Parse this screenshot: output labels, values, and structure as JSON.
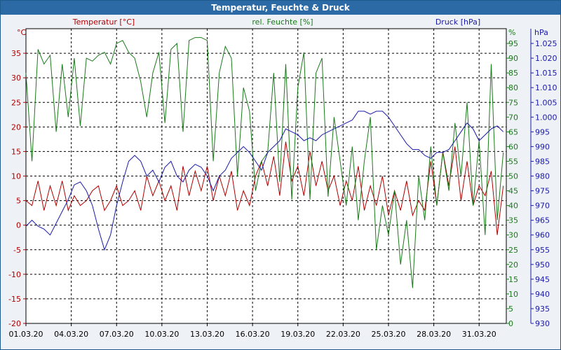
{
  "title": "Temperatur, Feuchte & Druck",
  "chart_data": {
    "type": "line",
    "title": "Temperatur, Feuchte & Druck",
    "colors": {
      "temperature": "#b00000",
      "humidity": "#1a7a1a",
      "pressure": "#1a1aa8"
    },
    "axes": {
      "temperature": {
        "unit": "°C",
        "label": "Temperatur [°C]",
        "range": [
          -20,
          40
        ],
        "ticks": [
          "-20",
          "-15",
          "-10",
          "-5",
          "0",
          "5",
          "10",
          "15",
          "20",
          "25",
          "30",
          "35"
        ]
      },
      "humidity": {
        "unit": "%",
        "label": "rel. Feuchte [%]",
        "range": [
          0,
          100
        ],
        "ticks": [
          "0",
          "5",
          "10",
          "15",
          "20",
          "25",
          "30",
          "35",
          "40",
          "45",
          "50",
          "55",
          "60",
          "65",
          "70",
          "75",
          "80",
          "85",
          "90",
          "95"
        ]
      },
      "pressure": {
        "unit": "hPa",
        "label": "Druck [hPa]",
        "range": [
          930,
          1030
        ],
        "ticks": [
          "930",
          "935",
          "940",
          "945",
          "950",
          "955",
          "960",
          "965",
          "970",
          "975",
          "980",
          "985",
          "990",
          "995",
          "1.000",
          "1.005",
          "1.010",
          "1.015",
          "1.020",
          "1.025"
        ]
      },
      "x": {
        "range": [
          0,
          31.8
        ],
        "ticks": [
          "01.03.20",
          "04.03.20",
          "07.03.20",
          "10.03.20",
          "13.03.20",
          "16.03.20",
          "19.03.20",
          "22.03.20",
          "25.03.20",
          "28.03.20",
          "31.03.20"
        ]
      }
    },
    "series": [
      {
        "name": "Temperatur [°C]",
        "axis": "temperature",
        "x": [
          0,
          0.4,
          0.8,
          1.2,
          1.6,
          2,
          2.4,
          2.8,
          3.2,
          3.6,
          4,
          4.4,
          4.8,
          5.2,
          5.6,
          6,
          6.4,
          6.8,
          7.2,
          7.6,
          8,
          8.4,
          8.8,
          9.2,
          9.6,
          10,
          10.4,
          10.8,
          11.2,
          11.6,
          12,
          12.4,
          12.8,
          13.2,
          13.6,
          14,
          14.4,
          14.8,
          15.2,
          15.6,
          16,
          16.4,
          16.8,
          17.2,
          17.6,
          18,
          18.4,
          18.8,
          19.2,
          19.6,
          20,
          20.4,
          20.8,
          21.2,
          21.6,
          22,
          22.4,
          22.8,
          23.2,
          23.6,
          24,
          24.4,
          24.8,
          25.2,
          25.6,
          26,
          26.4,
          26.8,
          27.2,
          27.6,
          28,
          28.4,
          28.8,
          29.2,
          29.6,
          30,
          30.4,
          30.8,
          31.2,
          31.6
        ],
        "values": [
          5,
          4,
          9,
          3,
          8,
          4,
          9,
          3,
          6,
          4,
          5,
          7,
          8,
          3,
          5,
          8,
          4,
          5,
          7,
          3,
          10,
          6,
          9,
          5,
          8,
          3,
          12,
          6,
          11,
          7,
          12,
          5,
          10,
          6,
          11,
          3,
          7,
          4,
          10,
          13,
          8,
          14,
          6,
          17,
          9,
          12,
          6,
          15,
          8,
          13,
          7,
          10,
          4,
          9,
          5,
          12,
          3,
          8,
          4,
          10,
          2,
          7,
          3,
          9,
          2,
          5,
          3,
          13,
          4,
          15,
          8,
          16,
          5,
          13,
          4,
          8,
          6,
          11,
          -2,
          8
        ],
        "y": [
          5,
          4,
          9,
          3,
          8,
          4,
          9,
          3,
          6,
          4,
          5,
          7,
          8,
          3,
          5,
          8,
          4,
          5,
          7,
          3,
          10,
          6,
          9,
          5,
          8,
          3,
          12,
          6,
          11,
          7,
          12,
          5,
          10,
          6,
          11,
          3,
          7,
          4,
          10,
          13,
          8,
          14,
          6,
          17,
          9,
          12,
          6,
          15,
          8,
          13,
          7,
          10,
          4,
          9,
          5,
          12,
          3,
          8,
          4,
          10,
          2,
          7,
          3,
          9,
          2,
          5,
          3,
          13,
          4,
          15,
          8,
          16,
          5,
          13,
          4,
          8,
          6,
          11,
          -2,
          8
        ]
      },
      {
        "name": "rel. Feuchte [%]",
        "axis": "humidity",
        "x": [
          0,
          0.4,
          0.8,
          1.2,
          1.6,
          2,
          2.4,
          2.8,
          3.2,
          3.6,
          4,
          4.4,
          4.8,
          5.2,
          5.6,
          6,
          6.4,
          6.8,
          7.2,
          7.6,
          8,
          8.4,
          8.8,
          9.2,
          9.6,
          10,
          10.4,
          10.8,
          11.2,
          11.6,
          12,
          12.4,
          12.8,
          13.2,
          13.6,
          14,
          14.4,
          14.8,
          15.2,
          15.6,
          16,
          16.4,
          16.8,
          17.2,
          17.6,
          18,
          18.4,
          18.8,
          19.2,
          19.6,
          20,
          20.4,
          20.8,
          21.2,
          21.6,
          22,
          22.4,
          22.8,
          23.2,
          23.6,
          24,
          24.4,
          24.8,
          25.2,
          25.6,
          26,
          26.4,
          26.8,
          27.2,
          27.6,
          28,
          28.4,
          28.8,
          29.2,
          29.6,
          30,
          30.4,
          30.8,
          31.2,
          31.6
        ],
        "values": [
          85,
          55,
          93,
          88,
          91,
          65,
          88,
          70,
          90,
          67,
          90,
          89,
          91,
          92,
          88,
          95,
          96,
          92,
          90,
          82,
          70,
          85,
          92,
          68,
          93,
          95,
          65,
          96,
          97,
          97,
          96,
          55,
          85,
          94,
          90,
          50,
          80,
          72,
          45,
          55,
          58,
          85,
          48,
          88,
          42,
          80,
          92,
          42,
          85,
          90,
          43,
          70,
          55,
          40,
          60,
          35,
          55,
          70,
          25,
          40,
          30,
          45,
          20,
          35,
          12,
          50,
          35,
          60,
          40,
          58,
          45,
          68,
          50,
          75,
          40,
          62,
          30,
          88,
          35,
          58
        ],
        "y": [
          85,
          55,
          93,
          88,
          91,
          65,
          88,
          70,
          90,
          67,
          90,
          89,
          91,
          92,
          88,
          95,
          96,
          92,
          90,
          82,
          70,
          85,
          92,
          68,
          93,
          95,
          65,
          96,
          97,
          97,
          96,
          55,
          85,
          94,
          90,
          50,
          80,
          72,
          45,
          55,
          58,
          85,
          48,
          88,
          42,
          80,
          92,
          42,
          85,
          90,
          43,
          70,
          55,
          40,
          60,
          35,
          55,
          70,
          25,
          40,
          30,
          45,
          20,
          35,
          12,
          50,
          35,
          60,
          40,
          58,
          45,
          68,
          50,
          75,
          40,
          62,
          30,
          88,
          35,
          58
        ]
      },
      {
        "name": "Druck [hPa]",
        "axis": "pressure",
        "x": [
          0,
          0.4,
          0.8,
          1.2,
          1.6,
          2,
          2.4,
          2.8,
          3.2,
          3.6,
          4,
          4.4,
          4.8,
          5.2,
          5.6,
          6,
          6.4,
          6.8,
          7.2,
          7.6,
          8,
          8.4,
          8.8,
          9.2,
          9.6,
          10,
          10.4,
          10.8,
          11.2,
          11.6,
          12,
          12.4,
          12.8,
          13.2,
          13.6,
          14,
          14.4,
          14.8,
          15.2,
          15.6,
          16,
          16.4,
          16.8,
          17.2,
          17.6,
          18,
          18.4,
          18.8,
          19.2,
          19.6,
          20,
          20.4,
          20.8,
          21.2,
          21.6,
          22,
          22.4,
          22.8,
          23.2,
          23.6,
          24,
          24.4,
          24.8,
          25.2,
          25.6,
          26,
          26.4,
          26.8,
          27.2,
          27.6,
          28,
          28.4,
          28.8,
          29.2,
          29.6,
          30,
          30.4,
          30.8,
          31.2,
          31.6
        ],
        "values": [
          963,
          965,
          963,
          962,
          960,
          964,
          968,
          972,
          977,
          978,
          975,
          970,
          962,
          955,
          960,
          970,
          978,
          985,
          987,
          985,
          980,
          982,
          978,
          983,
          985,
          980,
          978,
          982,
          984,
          983,
          980,
          975,
          980,
          982,
          986,
          988,
          990,
          988,
          985,
          982,
          988,
          990,
          992,
          996,
          995,
          994,
          992,
          993,
          992,
          994,
          995,
          996,
          997,
          998,
          999,
          1002,
          1002,
          1001,
          1002,
          1002,
          1000,
          997,
          994,
          991,
          989,
          989,
          987,
          986,
          988,
          988,
          989,
          992,
          995,
          998,
          996,
          992,
          994,
          996,
          997,
          995
        ],
        "y": [
          963,
          965,
          963,
          962,
          960,
          964,
          968,
          972,
          977,
          978,
          975,
          970,
          962,
          955,
          960,
          970,
          978,
          985,
          987,
          985,
          980,
          982,
          978,
          983,
          985,
          980,
          978,
          982,
          984,
          983,
          980,
          975,
          980,
          982,
          986,
          988,
          990,
          988,
          985,
          982,
          988,
          990,
          992,
          996,
          995,
          994,
          992,
          993,
          992,
          994,
          995,
          996,
          997,
          998,
          999,
          1002,
          1002,
          1001,
          1002,
          1002,
          1000,
          997,
          994,
          991,
          989,
          989,
          987,
          986,
          988,
          988,
          989,
          992,
          995,
          998,
          996,
          992,
          994,
          996,
          997,
          995
        ]
      }
    ],
    "grid": true
  }
}
